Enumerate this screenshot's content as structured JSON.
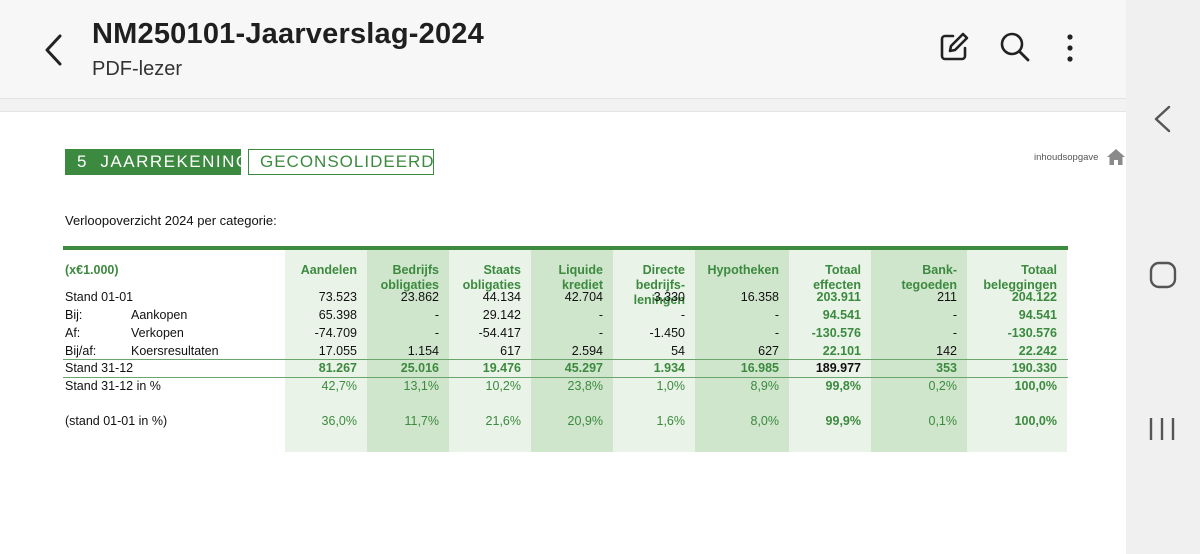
{
  "app": {
    "title": "NM250101-Jaarverslag-2024",
    "subtitle": "PDF-lezer",
    "icons": [
      "back-arrow-icon",
      "edit-icon",
      "search-icon",
      "more-vert-icon"
    ]
  },
  "nav": {
    "icons": [
      "nav-back-icon",
      "nav-home-icon",
      "nav-recents-icon"
    ]
  },
  "doc": {
    "section_number": "5  JAARREKENING",
    "section_sub": "GECONSOLIDEERD",
    "toc_link": "inhoudsopgave",
    "caption": "Verloopoverzicht 2024 per categorie:",
    "unit": "(x€1.000)",
    "columns": [
      [
        "Aandelen"
      ],
      [
        "Bedrijfs",
        "obligaties"
      ],
      [
        "Staats",
        "obligaties"
      ],
      [
        "Liquide",
        "krediet"
      ],
      [
        "Directe",
        "bedrijfs-",
        "leningen"
      ],
      [
        "Hypotheken"
      ],
      [
        "Totaal",
        "effecten"
      ],
      [
        "Bank-",
        "tegoeden"
      ],
      [
        "Totaal",
        "beleggingen"
      ]
    ],
    "rows": [
      {
        "label": "Stand 01-01",
        "sub": "",
        "values": [
          "73.523",
          "23.862",
          "44.134",
          "42.704",
          "3.330",
          "16.358",
          "203.911",
          "211",
          "204.122"
        ]
      },
      {
        "label": "Bij:",
        "sub": "Aankopen",
        "values": [
          "65.398",
          "-",
          "29.142",
          "-",
          "-",
          "-",
          "94.541",
          "-",
          "94.541"
        ]
      },
      {
        "label": "Af:",
        "sub": "Verkopen",
        "values": [
          "-74.709",
          "-",
          "-54.417",
          "-",
          "-1.450",
          "-",
          "-130.576",
          "-",
          "-130.576"
        ]
      },
      {
        "label": "Bij/af:",
        "sub": "Koersresultaten",
        "values": [
          "17.055",
          "1.154",
          "617",
          "2.594",
          "54",
          "627",
          "22.101",
          "142",
          "22.242"
        ]
      },
      {
        "label": "Stand 31-12",
        "sub": "",
        "values": [
          "81.267",
          "25.016",
          "19.476",
          "45.297",
          "1.934",
          "16.985",
          "189.977",
          "353",
          "190.330"
        ]
      },
      {
        "label": "Stand 31-12 in %",
        "sub": "",
        "values": [
          "42,7%",
          "13,1%",
          "10,2%",
          "23,8%",
          "1,0%",
          "8,9%",
          "99,8%",
          "0,2%",
          "100,0%"
        ]
      },
      {
        "label": "(stand 01-01 in %)",
        "sub": "",
        "values": [
          "36,0%",
          "11,7%",
          "21,6%",
          "20,9%",
          "1,6%",
          "8,0%",
          "99,9%",
          "0,1%",
          "100,0%"
        ]
      }
    ]
  }
}
